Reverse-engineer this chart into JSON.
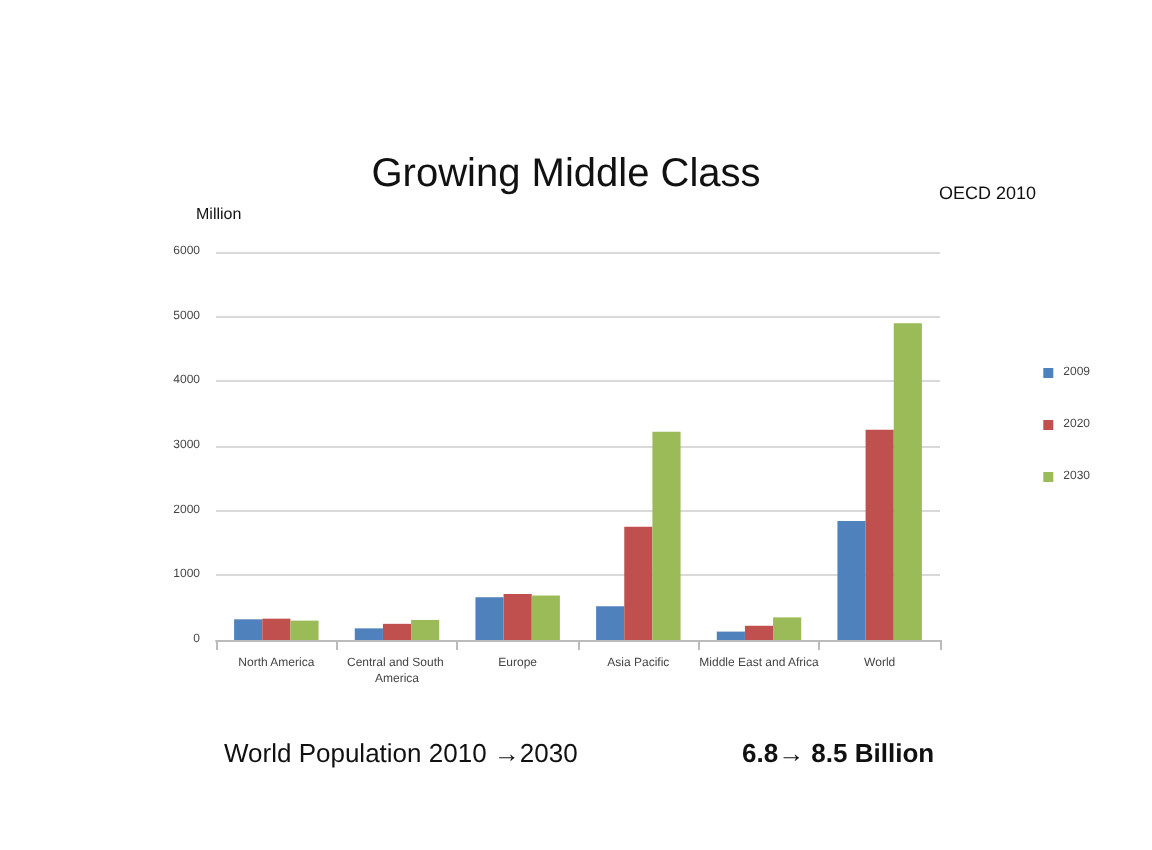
{
  "chart_data": {
    "type": "bar",
    "title": "Growing Middle Class",
    "ylabel": "Million",
    "categories": [
      "North America",
      "Central and South America",
      "Europe",
      "Asia Pacific",
      "Middle East and Africa",
      "World"
    ],
    "series": [
      {
        "name": "2009",
        "color": "#4f81bd",
        "values": [
          320,
          180,
          660,
          520,
          130,
          1840
        ]
      },
      {
        "name": "2020",
        "color": "#c0504d",
        "values": [
          330,
          250,
          710,
          1750,
          220,
          3250
        ]
      },
      {
        "name": "2030",
        "color": "#9bbb59",
        "values": [
          300,
          310,
          690,
          3220,
          350,
          4900
        ]
      }
    ],
    "ylim": [
      0,
      6000
    ],
    "yticks": [
      0,
      1000,
      2000,
      3000,
      4000,
      5000,
      6000
    ],
    "grid": "y",
    "legend": "right",
    "annotations": [
      "OECD 2010",
      "World Population 2010 →2030",
      "6.8→ 8.5 Billion"
    ]
  }
}
